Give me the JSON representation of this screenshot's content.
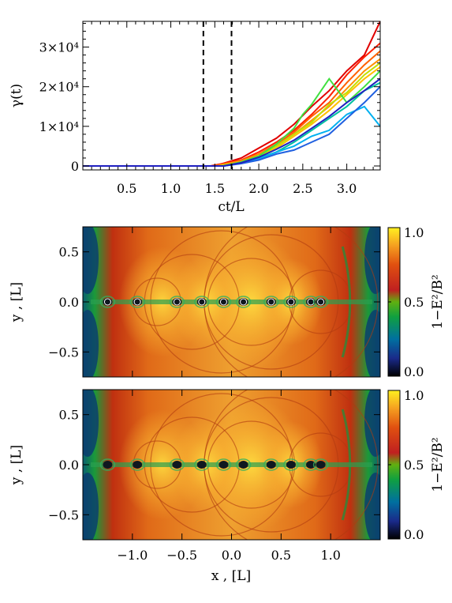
{
  "chart_data": [
    {
      "type": "line",
      "ylabel": "γ(t)",
      "xlabel": "ct/L",
      "xlim": [
        0.0,
        3.38
      ],
      "ylim": [
        -1000,
        36500
      ],
      "xticks": [
        "0.5",
        "1.0",
        "1.5",
        "2.0",
        "2.5",
        "3.0"
      ],
      "xtick_values": [
        0.5,
        1.0,
        1.5,
        2.0,
        2.5,
        3.0
      ],
      "yticks": [
        "0",
        "1×10⁴",
        "2×10⁴",
        "3×10⁴"
      ],
      "ytick_values": [
        0,
        10000,
        20000,
        30000
      ],
      "vlines": [
        1.37,
        1.69
      ],
      "series": [
        {
          "color": "#e00000",
          "x": [
            0.0,
            1.5,
            1.8,
            2.0,
            2.2,
            2.4,
            2.6,
            2.8,
            3.0,
            3.2,
            3.38
          ],
          "values": [
            0,
            0,
            2000,
            4500,
            7000,
            10500,
            15000,
            19000,
            24000,
            28000,
            36500
          ]
        },
        {
          "color": "#ff2000",
          "x": [
            0.0,
            1.45,
            1.8,
            2.0,
            2.2,
            2.4,
            2.6,
            2.8,
            3.0,
            3.2,
            3.38
          ],
          "values": [
            0,
            0,
            1500,
            3500,
            6000,
            9000,
            13000,
            17500,
            23000,
            27500,
            31000
          ]
        },
        {
          "color": "#ff6000",
          "x": [
            0.0,
            1.5,
            1.8,
            2.0,
            2.2,
            2.4,
            2.6,
            2.8,
            3.0,
            3.2,
            3.38
          ],
          "values": [
            0,
            0,
            1400,
            3000,
            5500,
            8500,
            12500,
            16000,
            21000,
            25500,
            29000
          ]
        },
        {
          "color": "#ff9000",
          "x": [
            0.0,
            1.5,
            1.8,
            2.0,
            2.2,
            2.4,
            2.6,
            2.8,
            3.0,
            3.2,
            3.38
          ],
          "values": [
            0,
            0,
            1200,
            3000,
            5000,
            8000,
            11500,
            15000,
            19500,
            24000,
            27000
          ]
        },
        {
          "color": "#ffc000",
          "x": [
            0.0,
            1.55,
            1.8,
            2.0,
            2.2,
            2.4,
            2.6,
            2.8,
            3.0,
            3.2,
            3.38
          ],
          "values": [
            0,
            0,
            1000,
            2500,
            4500,
            7500,
            10500,
            14000,
            18000,
            22000,
            25000
          ]
        },
        {
          "color": "#c0e000",
          "x": [
            0.0,
            1.55,
            1.8,
            2.0,
            2.2,
            2.4,
            2.6,
            2.8,
            3.0,
            3.2,
            3.38
          ],
          "values": [
            0,
            0,
            900,
            2500,
            5000,
            8000,
            11000,
            15500,
            18500,
            23000,
            26000
          ]
        },
        {
          "color": "#40e040",
          "x": [
            0.0,
            1.6,
            1.8,
            2.0,
            2.2,
            2.4,
            2.5,
            2.6,
            2.8,
            3.0,
            3.2,
            3.38
          ],
          "values": [
            0,
            0,
            1000,
            2500,
            5500,
            9500,
            13000,
            15500,
            22000,
            16000,
            20000,
            24000
          ]
        },
        {
          "color": "#00c0a0",
          "x": [
            0.0,
            1.6,
            1.8,
            2.0,
            2.2,
            2.4,
            2.6,
            2.8,
            3.0,
            3.2,
            3.38
          ],
          "values": [
            0,
            0,
            800,
            2000,
            3500,
            6000,
            9000,
            12000,
            15000,
            19000,
            21000
          ]
        },
        {
          "color": "#00b0f0",
          "x": [
            0.0,
            1.6,
            1.8,
            2.0,
            2.2,
            2.4,
            2.6,
            2.8,
            3.0,
            3.2,
            3.38
          ],
          "values": [
            0,
            0,
            700,
            1800,
            3500,
            5000,
            7500,
            9000,
            13000,
            15000,
            10000
          ]
        },
        {
          "color": "#2060e0",
          "x": [
            0.0,
            1.6,
            1.8,
            2.0,
            2.2,
            2.4,
            2.6,
            2.8,
            3.0,
            3.2,
            3.38
          ],
          "values": [
            0,
            0,
            600,
            1500,
            3000,
            4000,
            6000,
            8000,
            12000,
            16000,
            20000
          ]
        },
        {
          "color": "#2020c0",
          "x": [
            0.0,
            1.6,
            1.8,
            2.0,
            2.2,
            2.4,
            2.6,
            2.8,
            3.0,
            3.2,
            3.38
          ],
          "values": [
            0,
            0,
            800,
            2200,
            4200,
            6500,
            9500,
            12500,
            16000,
            19000,
            22000
          ]
        }
      ]
    },
    {
      "type": "heatmap",
      "ylabel": "y , [L]",
      "xlim": [
        -1.5,
        1.5
      ],
      "ylim": [
        -0.75,
        0.75
      ],
      "yticks": [
        "0.5",
        "0.0",
        "−0.5"
      ],
      "ytick_values": [
        0.5,
        0.0,
        -0.5
      ],
      "colorbar": {
        "label": "1−E²/B²",
        "ticks": [
          "1.0",
          "0.5",
          "0.0"
        ],
        "tick_values": [
          1.0,
          0.5,
          0.0
        ],
        "range": [
          0.0,
          1.0
        ]
      },
      "island_x": [
        -1.25,
        -0.95,
        -0.55,
        -0.3,
        -0.08,
        0.12,
        0.4,
        0.6,
        0.8,
        0.9
      ]
    },
    {
      "type": "heatmap",
      "ylabel": "y , [L]",
      "xlabel": "x , [L]",
      "xlim": [
        -1.5,
        1.5
      ],
      "ylim": [
        -0.75,
        0.75
      ],
      "xticks": [
        "−1.0",
        "−0.5",
        "0.0",
        "0.5",
        "1.0"
      ],
      "xtick_values": [
        -1.0,
        -0.5,
        0.0,
        0.5,
        1.0
      ],
      "yticks": [
        "0.5",
        "0.0",
        "−0.5"
      ],
      "ytick_values": [
        0.5,
        0.0,
        -0.5
      ],
      "colorbar": {
        "label": "1−E²/B²",
        "ticks": [
          "1.0",
          "0.5",
          "0.0"
        ],
        "tick_values": [
          1.0,
          0.5,
          0.0
        ],
        "range": [
          0.0,
          1.0
        ]
      },
      "island_x": [
        -1.25,
        -0.95,
        -0.55,
        -0.3,
        -0.08,
        0.12,
        0.4,
        0.6,
        0.8,
        0.9
      ]
    }
  ]
}
